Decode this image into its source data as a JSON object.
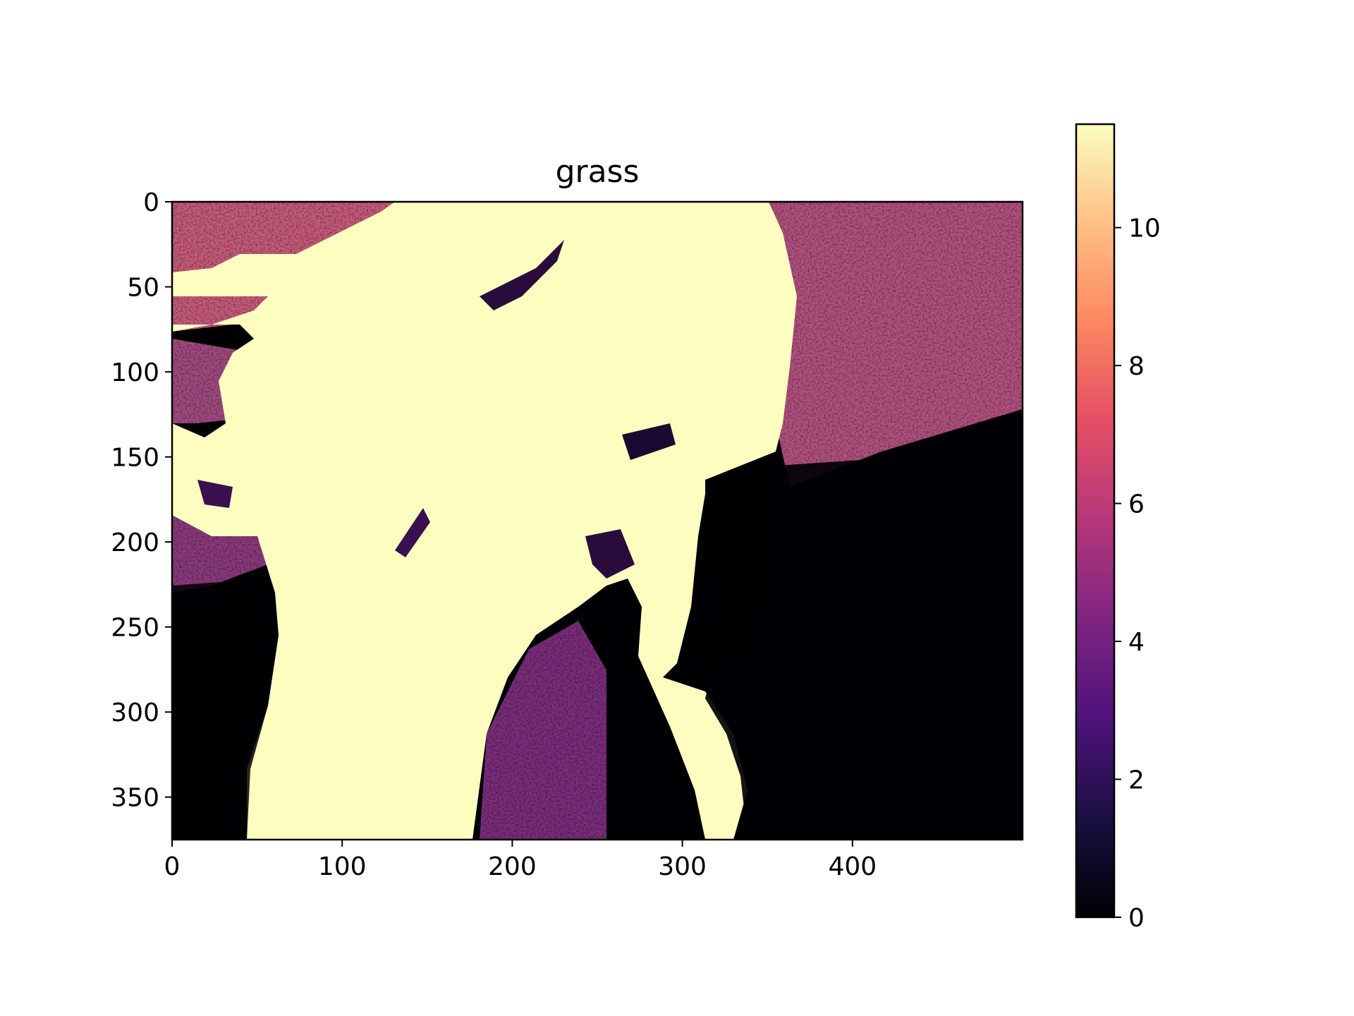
{
  "chart_data": {
    "type": "heatmap",
    "title": "grass",
    "colormap": "magma",
    "image_shape": [
      375,
      500
    ],
    "x_ticks": [
      0,
      100,
      200,
      300,
      400
    ],
    "x_tick_labels": [
      "0",
      "100",
      "200",
      "300",
      "400"
    ],
    "y_ticks": [
      0,
      50,
      100,
      150,
      200,
      250,
      300,
      350
    ],
    "y_tick_labels": [
      "0",
      "50",
      "100",
      "150",
      "200",
      "250",
      "300",
      "350"
    ],
    "xlim": [
      0,
      500
    ],
    "ylim": [
      375,
      0
    ],
    "colorbar": {
      "range": [
        0,
        11.5
      ],
      "ticks": [
        0,
        2,
        4,
        6,
        8,
        10
      ],
      "tick_labels": [
        "0",
        "2",
        "4",
        "6",
        "8",
        "10"
      ]
    },
    "regions": [
      {
        "label": "high (~11.5)",
        "value": 11.5,
        "description": "central bright shape spanning top to bottom"
      },
      {
        "label": "low (~0)",
        "value": 0,
        "description": "dark areas in lower right and lower left"
      },
      {
        "label": "mixed",
        "value": 5,
        "description": "speckled textured areas top-left and top-right"
      }
    ],
    "grid": false,
    "legend": "colorbar-right"
  }
}
